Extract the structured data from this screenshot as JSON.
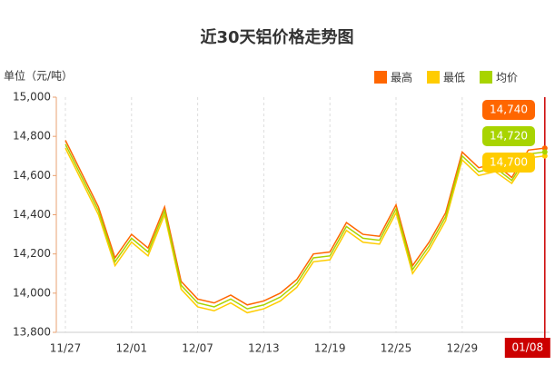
{
  "chart_data": {
    "type": "line",
    "title": "近30天铝价格走势图",
    "y_label": "单位（元/吨）",
    "categories": [
      "11/27",
      null,
      null,
      null,
      "12/01",
      null,
      null,
      null,
      "12/07",
      null,
      null,
      null,
      "12/13",
      null,
      null,
      null,
      "12/19",
      null,
      null,
      null,
      "12/25",
      null,
      null,
      null,
      "12/29",
      null,
      null,
      null,
      null,
      "01/08"
    ],
    "series": [
      {
        "name": "最高",
        "color": "#ff6600",
        "values": [
          14780,
          14610,
          14440,
          14180,
          14300,
          14230,
          14440,
          14060,
          13970,
          13950,
          13990,
          13940,
          13960,
          14000,
          14070,
          14200,
          14210,
          14360,
          14300,
          14290,
          14450,
          14140,
          14260,
          14410,
          14720,
          14640,
          14660,
          14590,
          14730,
          14740
        ]
      },
      {
        "name": "最低",
        "color": "#ffcc00",
        "values": [
          14740,
          14570,
          14400,
          14140,
          14260,
          14190,
          14400,
          14020,
          13930,
          13910,
          13950,
          13900,
          13920,
          13960,
          14030,
          14160,
          14170,
          14320,
          14260,
          14250,
          14410,
          14100,
          14220,
          14370,
          14680,
          14600,
          14620,
          14560,
          14690,
          14700
        ]
      },
      {
        "name": "均价",
        "color": "#a8d400",
        "values": [
          14760,
          14590,
          14420,
          14160,
          14280,
          14210,
          14420,
          14040,
          13950,
          13930,
          13970,
          13920,
          13940,
          13980,
          14050,
          14180,
          14190,
          14340,
          14280,
          14270,
          14430,
          14120,
          14240,
          14390,
          14700,
          14620,
          14640,
          14575,
          14710,
          14720
        ]
      }
    ],
    "ylim": [
      13800,
      15000
    ],
    "yticks": [
      {
        "value": 13800,
        "label": "13,800"
      },
      {
        "value": 14000,
        "label": "14,000"
      },
      {
        "value": 14200,
        "label": "14,200"
      },
      {
        "value": 14400,
        "label": "14,400"
      },
      {
        "value": 14600,
        "label": "14,600"
      },
      {
        "value": 14800,
        "label": "14,800"
      },
      {
        "value": 15000,
        "label": "15,000"
      }
    ],
    "grid": true,
    "tooltip": [
      {
        "value": 14740,
        "label": "14,740",
        "color": "#ff6600"
      },
      {
        "value": 14720,
        "label": "14,720",
        "color": "#a8d400"
      },
      {
        "value": 14700,
        "label": "14,700",
        "color": "#ffcc00"
      }
    ]
  }
}
